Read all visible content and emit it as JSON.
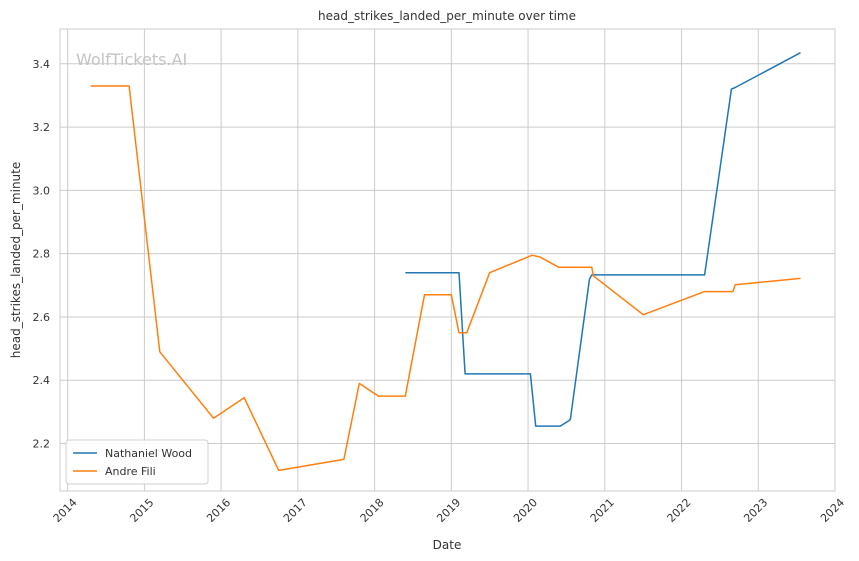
{
  "chart_data": {
    "type": "line",
    "title": "head_strikes_landed_per_minute over time",
    "xlabel": "Date",
    "ylabel": "head_strikes_landed_per_minute",
    "watermark": "WolfTickets.AI",
    "xlim": [
      2013.9,
      2024.0
    ],
    "ylim": [
      2.05,
      3.51
    ],
    "x_ticks": [
      2014,
      2015,
      2016,
      2017,
      2018,
      2019,
      2020,
      2021,
      2022,
      2023,
      2024
    ],
    "x_tick_labels": [
      "2014",
      "2015",
      "2016",
      "2017",
      "2018",
      "2019",
      "2020",
      "2021",
      "2022",
      "2023",
      "2024"
    ],
    "y_ticks": [
      2.2,
      2.4,
      2.6,
      2.8,
      3.0,
      3.2,
      3.4
    ],
    "y_tick_labels": [
      "2.2",
      "2.4",
      "2.6",
      "2.8",
      "3.0",
      "3.2",
      "3.4"
    ],
    "grid": true,
    "legend": "lower-left",
    "series": [
      {
        "name": "Nathaniel Wood",
        "color": "#1f77b4",
        "x": [
          2018.4,
          2019.1,
          2019.18,
          2020.03,
          2020.1,
          2020.42,
          2020.55,
          2020.8,
          2020.83,
          2022.3,
          2022.55,
          2022.65,
          2022.7,
          2023.55
        ],
        "y": [
          2.74,
          2.74,
          2.42,
          2.42,
          2.255,
          2.255,
          2.275,
          2.72,
          2.733,
          2.733,
          3.15,
          3.32,
          3.325,
          3.435
        ]
      },
      {
        "name": "Andre Fili",
        "color": "#ff7f0e",
        "x": [
          2014.3,
          2014.8,
          2015.2,
          2015.9,
          2016.3,
          2016.75,
          2017.6,
          2017.8,
          2018.05,
          2018.4,
          2018.65,
          2019.0,
          2019.1,
          2019.2,
          2019.5,
          2020.05,
          2020.15,
          2020.4,
          2020.83,
          2020.85,
          2021.5,
          2022.3,
          2022.67,
          2022.7,
          2023.55
        ],
        "y": [
          3.33,
          3.33,
          2.49,
          2.28,
          2.345,
          2.115,
          2.15,
          2.39,
          2.35,
          2.35,
          2.67,
          2.67,
          2.55,
          2.55,
          2.74,
          2.795,
          2.79,
          2.757,
          2.757,
          2.73,
          2.607,
          2.68,
          2.68,
          2.702,
          2.722
        ]
      }
    ]
  }
}
